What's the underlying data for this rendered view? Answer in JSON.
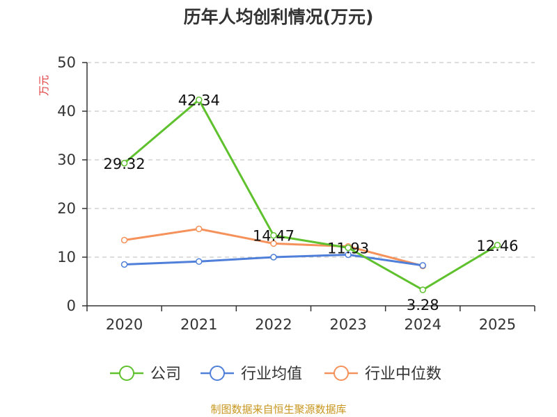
{
  "chart_data": {
    "type": "line",
    "title": "历年人均创利情况(万元)",
    "ylabel": "万元",
    "ylim": [
      0,
      50
    ],
    "yticks": [
      0,
      10,
      20,
      30,
      40,
      50
    ],
    "grid": true,
    "legend_position": "bottom",
    "categories": [
      "2020",
      "2021",
      "2022",
      "2023",
      "2024",
      "2025"
    ],
    "series": [
      {
        "name": "公司",
        "color": "#5ec12d",
        "values": [
          29.32,
          42.34,
          14.47,
          11.93,
          3.28,
          12.46
        ],
        "labels": [
          "29.32",
          "42.34",
          "14.47",
          "11.93",
          "3.28",
          "12.46"
        ]
      },
      {
        "name": "行业均值",
        "color": "#4f7fd9",
        "values": [
          8.5,
          9.1,
          10.0,
          10.5,
          8.3,
          null
        ]
      },
      {
        "name": "行业中位数",
        "color": "#f5915a",
        "values": [
          13.5,
          15.8,
          12.8,
          12.2,
          8.2,
          null
        ]
      }
    ]
  },
  "colors": {
    "ylabel": "#e03c3c",
    "source": "#c8961e",
    "axis": "#333333",
    "grid": "#bbbbbb"
  },
  "footer": {
    "source_text": "制图数据来自恒生聚源数据库"
  }
}
